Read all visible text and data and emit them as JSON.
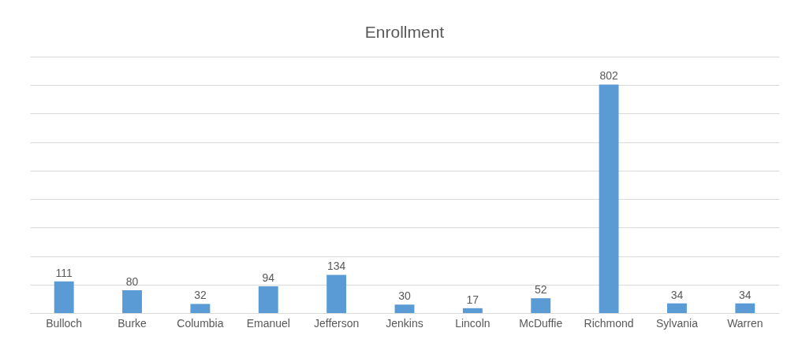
{
  "chart_data": {
    "type": "bar",
    "title": "Enrollment",
    "categories": [
      "Bulloch",
      "Burke",
      "Columbia",
      "Emanuel",
      "Jefferson",
      "Jenkins",
      "Lincoln",
      "McDuffie",
      "Richmond",
      "Sylvania",
      "Warren"
    ],
    "values": [
      111,
      80,
      32,
      94,
      134,
      30,
      17,
      52,
      802,
      34,
      34
    ],
    "color": "#5b9bd5",
    "grid": "y",
    "tick_labels": "x",
    "data_labels": true
  }
}
